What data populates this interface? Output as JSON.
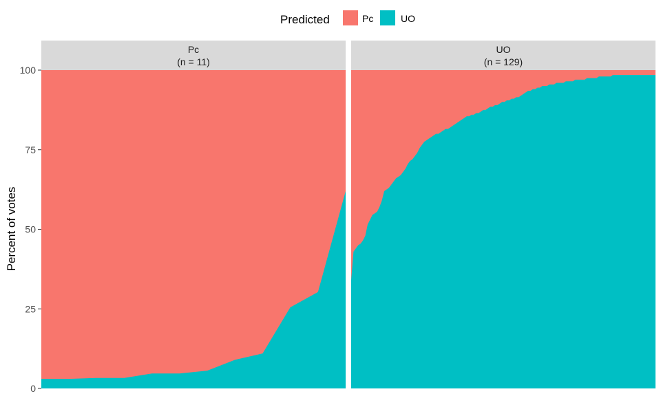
{
  "chart_data": {
    "type": "area",
    "stacked": true,
    "ylabel": "Percent of votes",
    "xlabel": "",
    "ylim": [
      0,
      100
    ],
    "y_ticks": [
      0,
      25,
      50,
      75,
      100
    ],
    "grid": false,
    "legend": {
      "title": "Predicted",
      "placement": "top",
      "entries": [
        {
          "name": "Pc",
          "color": "#F8766D"
        },
        {
          "name": "UO",
          "color": "#00BFC4"
        }
      ]
    },
    "colors": {
      "Pc": "#F8766D",
      "UO": "#00BFC4"
    },
    "facets": [
      {
        "id": "pc",
        "title": "Pc",
        "subtitle": "(n = 11)",
        "n": 11,
        "uo_percent": [
          3,
          3,
          3.3,
          3.3,
          4.7,
          4.7,
          5.6,
          9,
          11,
          25.5,
          30.3,
          62
        ]
      },
      {
        "id": "uo",
        "title": "UO",
        "subtitle": "(n = 129)",
        "n": 129,
        "uo_percent": [
          34,
          43,
          44,
          45,
          45.5,
          46.5,
          48,
          51.5,
          53,
          54.5,
          55,
          55.5,
          57,
          59,
          62,
          62.5,
          63,
          64,
          65,
          66,
          66.5,
          67,
          68,
          69,
          70.5,
          71.5,
          72,
          73,
          74,
          75.5,
          76.5,
          77.5,
          78,
          78.5,
          79,
          79.5,
          80,
          80,
          80.5,
          81,
          81.5,
          81.5,
          82,
          82.5,
          83,
          83.5,
          84,
          84.5,
          85,
          85.5,
          85.5,
          86,
          86,
          86.5,
          86.5,
          87,
          87.5,
          87.5,
          88,
          88.5,
          88.5,
          89,
          89,
          89.5,
          90,
          90,
          90.5,
          90.5,
          91,
          91,
          91.5,
          91.5,
          92,
          92.5,
          93,
          93.5,
          93.5,
          94,
          94,
          94.5,
          94.5,
          95,
          95,
          95,
          95.5,
          95.5,
          95.5,
          96,
          96,
          96,
          96,
          96.5,
          96.5,
          96.5,
          96.5,
          97,
          97,
          97,
          97,
          97,
          97.5,
          97.5,
          97.5,
          97.5,
          97.5,
          98,
          98,
          98,
          98,
          98,
          98,
          98.5,
          98.5,
          98.5,
          98.5,
          98.5,
          98.5,
          98.5,
          98.5,
          98.5,
          98.5,
          98.5,
          98.5,
          98.5,
          98.5,
          98.5,
          98.5,
          98.5,
          98.5,
          98.5
        ]
      }
    ]
  }
}
